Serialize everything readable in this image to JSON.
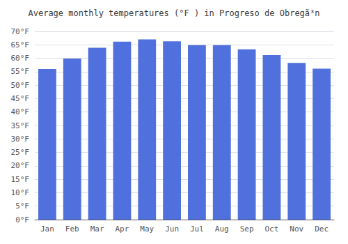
{
  "chart_data": {
    "type": "bar",
    "title": "Average monthly temperatures (°F ) in Progreso de Obregã³n",
    "categories": [
      "Jan",
      "Feb",
      "Mar",
      "Apr",
      "May",
      "Jun",
      "Jul",
      "Aug",
      "Sep",
      "Oct",
      "Nov",
      "Dec"
    ],
    "values": [
      56.0,
      59.9,
      63.9,
      66.2,
      67.0,
      66.3,
      64.9,
      64.9,
      63.3,
      61.2,
      58.3,
      56.1
    ],
    "ylim": [
      0,
      70
    ],
    "yticks": [
      {
        "value": 0,
        "label": "0°F"
      },
      {
        "value": 5,
        "label": "5°F"
      },
      {
        "value": 10,
        "label": "10°F"
      },
      {
        "value": 15,
        "label": "15°F"
      },
      {
        "value": 20,
        "label": "20°F"
      },
      {
        "value": 25,
        "label": "25°F"
      },
      {
        "value": 30,
        "label": "30°F"
      },
      {
        "value": 35,
        "label": "35°F"
      },
      {
        "value": 40,
        "label": "40°F"
      },
      {
        "value": 45,
        "label": "45°F"
      },
      {
        "value": 50,
        "label": "50°F"
      },
      {
        "value": 55,
        "label": "55°F"
      },
      {
        "value": 60,
        "label": "60°F"
      },
      {
        "value": 65,
        "label": "65°F"
      },
      {
        "value": 70,
        "label": "70°F"
      }
    ],
    "grid": true
  }
}
